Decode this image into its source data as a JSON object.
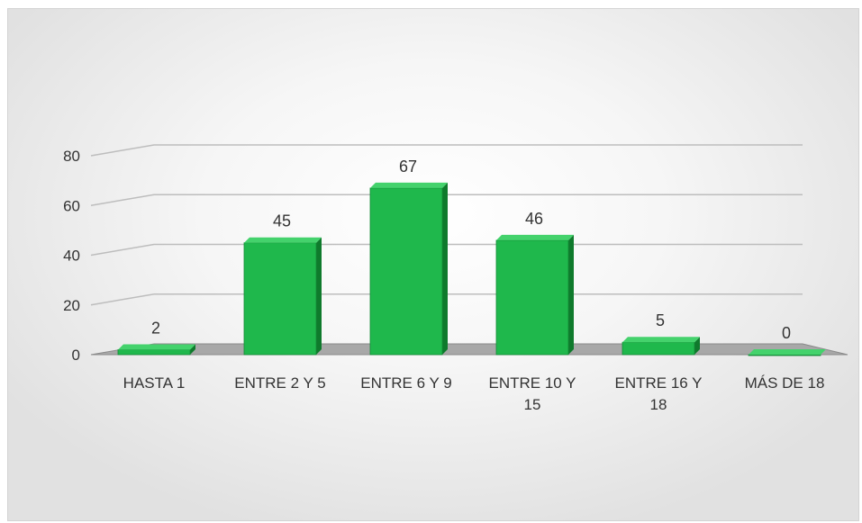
{
  "chart_data": {
    "type": "bar",
    "categories": [
      [
        "HASTA 1"
      ],
      [
        "ENTRE 2 Y 5"
      ],
      [
        "ENTRE 6 Y 9"
      ],
      [
        "ENTRE 10 Y",
        "15"
      ],
      [
        "ENTRE 16 Y",
        "18"
      ],
      [
        "MÁS DE 18"
      ]
    ],
    "values": [
      2,
      45,
      67,
      46,
      5,
      0
    ],
    "data_labels": [
      "2",
      "45",
      "67",
      "46",
      "5",
      "0"
    ],
    "y_ticks": [
      "0",
      "20",
      "40",
      "60",
      "80"
    ],
    "ylim": [
      0,
      80
    ],
    "grid": true,
    "three_d": true,
    "colors": {
      "bar_front": "#1fb84c",
      "bar_side": "#0f7a2c",
      "bar_top": "#44d26c",
      "floor": "#a8a8a8",
      "gridline": "#bdbdbd"
    }
  }
}
